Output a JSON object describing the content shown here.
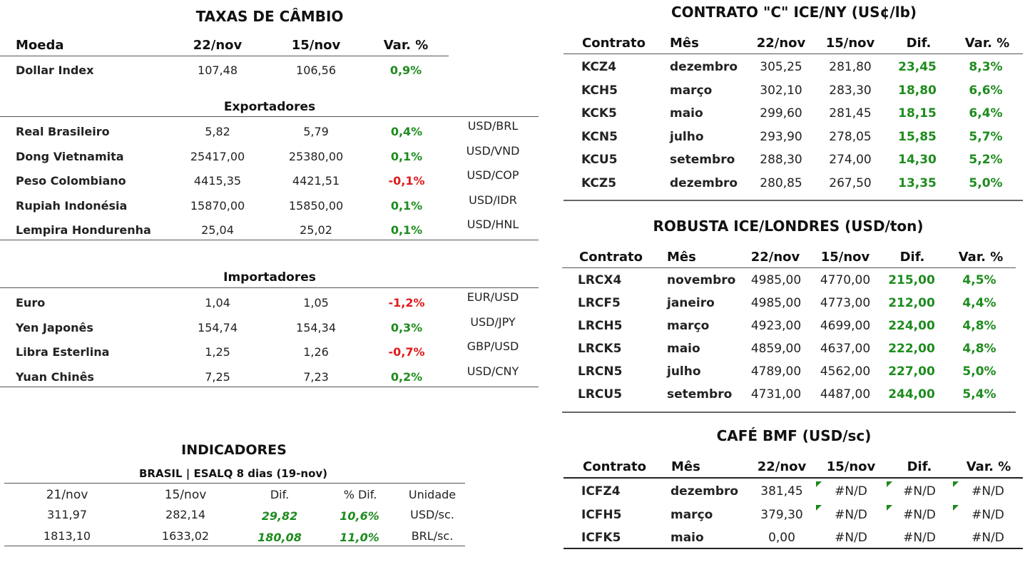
{
  "taxas": {
    "title": "TAXAS DE CÂMBIO",
    "headers": [
      "Moeda",
      "22/nov",
      "15/nov",
      "Var. %"
    ],
    "dollar_index": {
      "name": "Dollar Index",
      "v1": "107,48",
      "v2": "106,56",
      "var": "0,9%"
    },
    "exportadores_title": "Exportadores",
    "exportadores": [
      {
        "name": "Real Brasileiro",
        "v1": "5,82",
        "v2": "5,79",
        "var": "0,4%",
        "pair": "USD/BRL",
        "color": "#1e8c1e"
      },
      {
        "name": "Dong Vietnamita",
        "v1": "25417,00",
        "v2": "25380,00",
        "var": "0,1%",
        "pair": "USD/VND",
        "color": "#1e8c1e"
      },
      {
        "name": "Peso Colombiano",
        "v1": "4415,35",
        "v2": "4421,51",
        "var": "-0,1%",
        "pair": "USD/COP",
        "color": "#e01b1b"
      },
      {
        "name": "Rupiah Indonésia",
        "v1": "15870,00",
        "v2": "15850,00",
        "var": "0,1%",
        "pair": "USD/IDR",
        "color": "#1e8c1e"
      },
      {
        "name": "Lempira Hondurenha",
        "v1": "25,04",
        "v2": "25,02",
        "var": "0,1%",
        "pair": "USD/HNL",
        "color": "#1e8c1e"
      }
    ],
    "importadores_title": "Importadores",
    "importadores": [
      {
        "name": "Euro",
        "v1": "1,04",
        "v2": "1,05",
        "var": "-1,2%",
        "pair": "EUR/USD",
        "color": "#e01b1b"
      },
      {
        "name": "Yen Japonês",
        "v1": "154,74",
        "v2": "154,34",
        "var": "0,3%",
        "pair": "USD/JPY",
        "color": "#1e8c1e"
      },
      {
        "name": "Libra Esterlina",
        "v1": "1,25",
        "v2": "1,26",
        "var": "-0,7%",
        "pair": "GBP/USD",
        "color": "#e01b1b"
      },
      {
        "name": "Yuan Chinês",
        "v1": "7,25",
        "v2": "7,23",
        "var": "0,2%",
        "pair": "USD/CNY",
        "color": "#1e8c1e"
      }
    ]
  },
  "indicadores": {
    "title": "INDICADORES",
    "subtitle": "BRASIL | ESALQ 8 dias (19-nov)",
    "headers": [
      "21/nov",
      "15/nov",
      "Dif.",
      "% Dif.",
      "Unidade"
    ],
    "rows": [
      {
        "a": "311,97",
        "b": "282,14",
        "dif": "29,82",
        "pct": "10,6%",
        "unit": "USD/sc."
      },
      {
        "a": "1813,10",
        "b": "1633,02",
        "dif": "180,08",
        "pct": "11,0%",
        "unit": "BRL/sc."
      }
    ]
  },
  "contrato_c": {
    "title": "CONTRATO \"C\" ICE/NY (US¢/lb)",
    "headers": [
      "Contrato",
      "Mês",
      "22/nov",
      "15/nov",
      "Dif.",
      "Var. %"
    ],
    "rows": [
      {
        "code": "KCZ4",
        "month": "dezembro",
        "v1": "305,25",
        "v2": "281,80",
        "dif": "23,45",
        "var": "8,3%"
      },
      {
        "code": "KCH5",
        "month": "março",
        "v1": "302,10",
        "v2": "283,30",
        "dif": "18,80",
        "var": "6,6%"
      },
      {
        "code": "KCK5",
        "month": "maio",
        "v1": "299,60",
        "v2": "281,45",
        "dif": "18,15",
        "var": "6,4%"
      },
      {
        "code": "KCN5",
        "month": "julho",
        "v1": "293,90",
        "v2": "278,05",
        "dif": "15,85",
        "var": "5,7%"
      },
      {
        "code": "KCU5",
        "month": "setembro",
        "v1": "288,30",
        "v2": "274,00",
        "dif": "14,30",
        "var": "5,2%"
      },
      {
        "code": "KCZ5",
        "month": "dezembro",
        "v1": "280,85",
        "v2": "267,50",
        "dif": "13,35",
        "var": "5,0%"
      }
    ]
  },
  "robusta": {
    "title": "ROBUSTA ICE/LONDRES (USD/ton)",
    "headers": [
      "Contrato",
      "Mês",
      "22/nov",
      "15/nov",
      "Dif.",
      "Var. %"
    ],
    "rows": [
      {
        "code": "LRCX4",
        "month": "novembro",
        "v1": "4985,00",
        "v2": "4770,00",
        "dif": "215,00",
        "var": "4,5%"
      },
      {
        "code": "LRCF5",
        "month": "janeiro",
        "v1": "4985,00",
        "v2": "4773,00",
        "dif": "212,00",
        "var": "4,4%"
      },
      {
        "code": "LRCH5",
        "month": "março",
        "v1": "4923,00",
        "v2": "4699,00",
        "dif": "224,00",
        "var": "4,8%"
      },
      {
        "code": "LRCK5",
        "month": "maio",
        "v1": "4859,00",
        "v2": "4637,00",
        "dif": "222,00",
        "var": "4,8%"
      },
      {
        "code": "LRCN5",
        "month": "julho",
        "v1": "4789,00",
        "v2": "4562,00",
        "dif": "227,00",
        "var": "5,0%"
      },
      {
        "code": "LRCU5",
        "month": "setembro",
        "v1": "4731,00",
        "v2": "4487,00",
        "dif": "244,00",
        "var": "5,4%"
      }
    ]
  },
  "bmf": {
    "title": "CAFÉ BMF (USD/sc)",
    "headers": [
      "Contrato",
      "Mês",
      "22/nov",
      "15/nov",
      "Dif.",
      "Var. %"
    ],
    "rows": [
      {
        "code": "ICFZ4",
        "month": "dezembro",
        "v1": "381,45",
        "v2": "#N/D",
        "dif": "#N/D",
        "var": "#N/D"
      },
      {
        "code": "ICFH5",
        "month": "março",
        "v1": "379,30",
        "v2": "#N/D",
        "dif": "#N/D",
        "var": "#N/D"
      },
      {
        "code": "ICFK5",
        "month": "maio",
        "v1": "0,00",
        "v2": "#N/D",
        "dif": "#N/D",
        "var": "#N/D"
      }
    ]
  },
  "colors": {
    "positive": "#1e8c1e",
    "negative": "#e01b1b",
    "flag": "#1a8a1a"
  }
}
